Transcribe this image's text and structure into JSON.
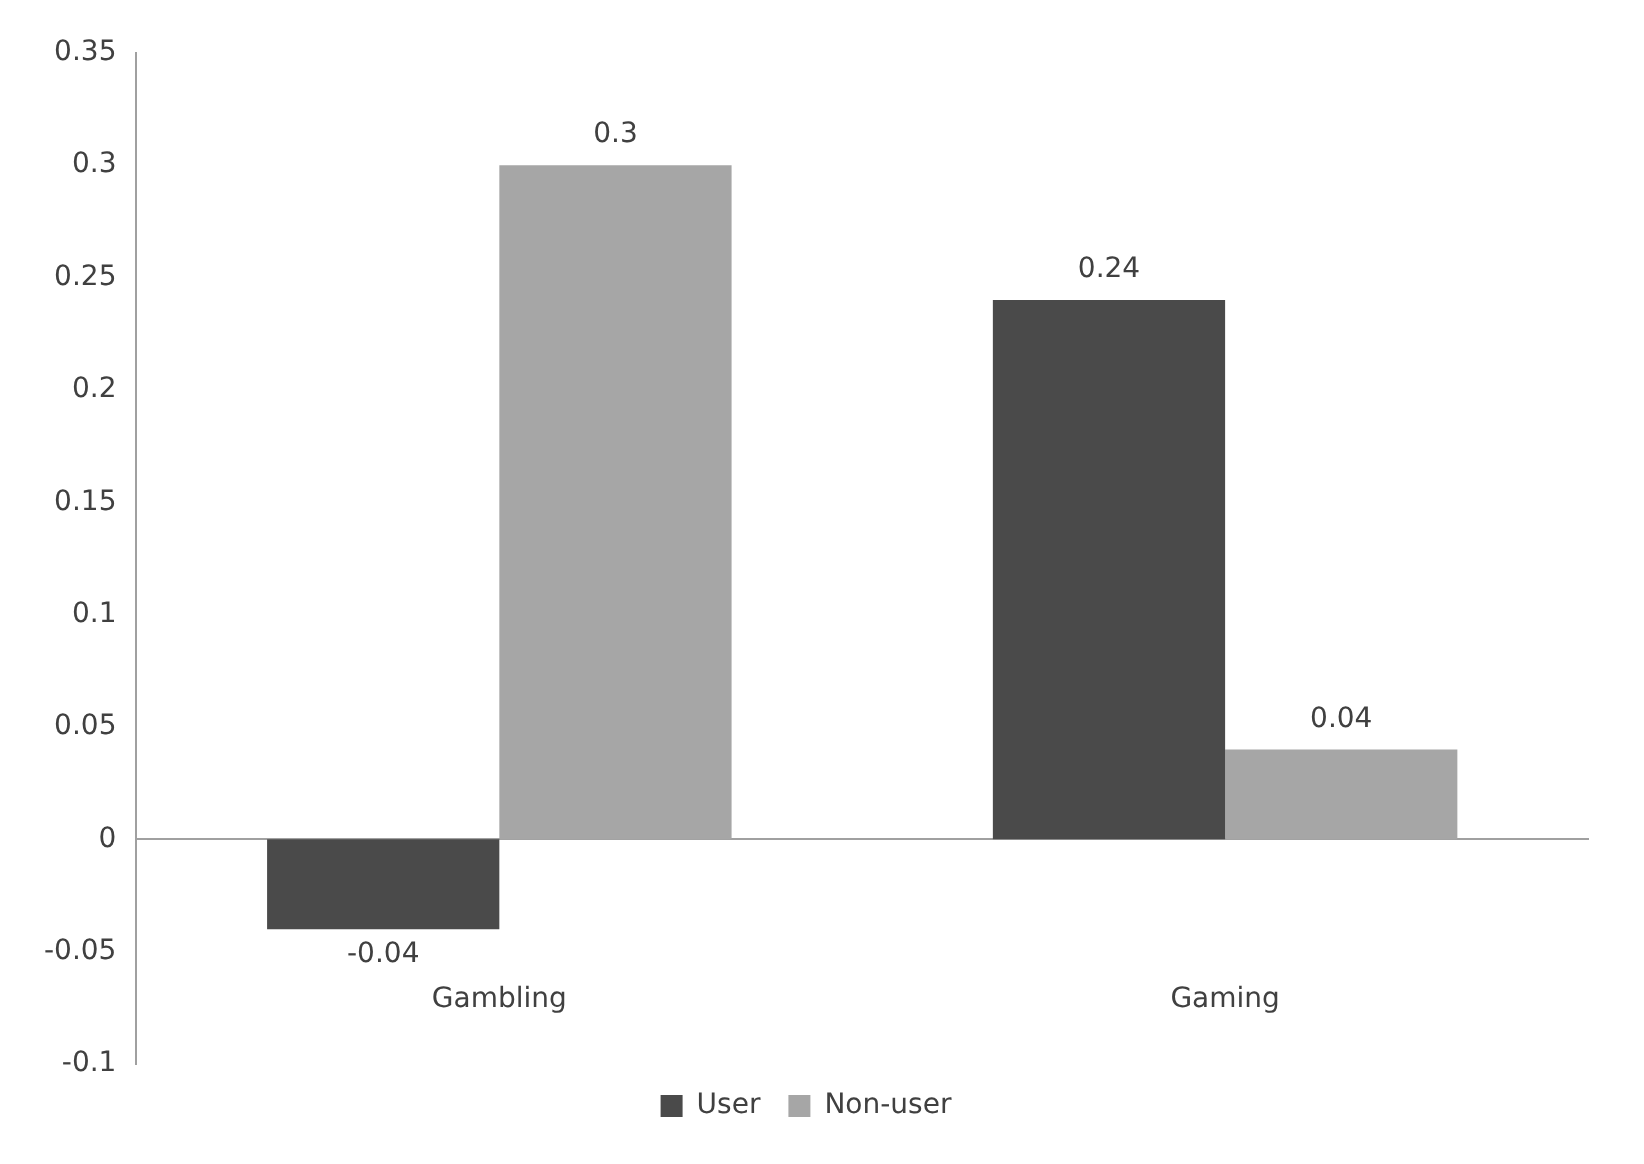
{
  "chart_data": {
    "type": "bar",
    "categories": [
      "Gambling",
      "Gaming"
    ],
    "series": [
      {
        "name": "User",
        "color": "#4a4a4a",
        "values": [
          -0.04,
          0.24
        ]
      },
      {
        "name": "Non-user",
        "color": "#a6a6a6",
        "values": [
          0.3,
          0.04
        ]
      }
    ],
    "ylim": [
      -0.1,
      0.35
    ],
    "yticks": [
      -0.1,
      -0.05,
      0,
      0.05,
      0.1,
      0.15,
      0.2,
      0.25,
      0.3,
      0.35
    ],
    "legend": "bottom",
    "data_labels": true
  }
}
